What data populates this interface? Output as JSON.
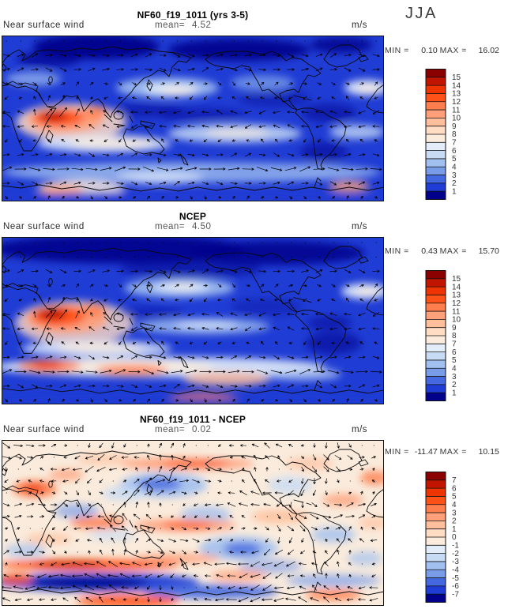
{
  "season": "JJA",
  "palette": [
    "#8b0000",
    "#c21500",
    "#ee3400",
    "#ff5218",
    "#ff7e4d",
    "#ffa07a",
    "#ffbf9c",
    "#ffdcc4",
    "#faebdc",
    "#e3edfa",
    "#c7dbf5",
    "#a2c0ef",
    "#799ce9",
    "#4468e0",
    "#1f3cd4",
    "#00008b"
  ],
  "panels": [
    {
      "title": "NF60_f19_1011 (yrs 3-5)",
      "field_label": "Near surface wind",
      "mean_label": "mean=",
      "mean_value": "4.52",
      "units": "m/s",
      "stats": {
        "min_label": "MIN =",
        "min_value": "0.10",
        "max_label": "MAX =",
        "max_value": "16.02"
      },
      "colorbar_labels": [
        "15",
        "14",
        "13",
        "12",
        "11",
        "10",
        "9",
        "8",
        "7",
        "6",
        "5",
        "4",
        "3",
        "2",
        "1"
      ]
    },
    {
      "title": "NCEP",
      "field_label": "Near surface wind",
      "mean_label": "mean=",
      "mean_value": "4.50",
      "units": "m/s",
      "stats": {
        "min_label": "MIN =",
        "min_value": "0.43",
        "max_label": "MAX =",
        "max_value": "15.70"
      },
      "colorbar_labels": [
        "15",
        "14",
        "13",
        "12",
        "11",
        "10",
        "9",
        "8",
        "7",
        "6",
        "5",
        "4",
        "3",
        "2",
        "1"
      ]
    },
    {
      "title": "NF60_f19_1011 - NCEP",
      "field_label": "Near surface wind",
      "mean_label": "mean=",
      "mean_value": "0.02",
      "units": "m/s",
      "stats": {
        "min_label": "MIN =",
        "min_value": "-11.47",
        "max_label": "MAX =",
        "max_value": "10.15"
      },
      "colorbar_labels": [
        "7",
        "6",
        "5",
        "4",
        "3",
        "2",
        "1",
        "0",
        "-1",
        "-2",
        "-3",
        "-4",
        "-5",
        "-6",
        "-7"
      ]
    }
  ],
  "chart_data": [
    {
      "type": "heatmap",
      "subtype": "global filled-contour wind speed map with vector arrows",
      "title": "NF60_f19_1011 (yrs 3-5)",
      "season": "JJA",
      "variable": "Near surface wind",
      "units": "m/s",
      "mean": 4.52,
      "min": 0.1,
      "max": 16.02,
      "contour_levels": [
        1,
        2,
        3,
        4,
        5,
        6,
        7,
        8,
        9,
        10,
        11,
        12,
        13,
        14,
        15
      ],
      "legend_position": "right",
      "projection": "global cylindrical, lon 0-360E, lat 90N-90S"
    },
    {
      "type": "heatmap",
      "subtype": "global filled-contour wind speed map with vector arrows",
      "title": "NCEP",
      "season": "JJA",
      "variable": "Near surface wind",
      "units": "m/s",
      "mean": 4.5,
      "min": 0.43,
      "max": 15.7,
      "contour_levels": [
        1,
        2,
        3,
        4,
        5,
        6,
        7,
        8,
        9,
        10,
        11,
        12,
        13,
        14,
        15
      ],
      "legend_position": "right",
      "projection": "global cylindrical, lon 0-360E, lat 90N-90S"
    },
    {
      "type": "heatmap",
      "subtype": "global filled-contour difference map (model minus reanalysis) with vector arrows",
      "title": "NF60_f19_1011 - NCEP",
      "season": "JJA",
      "variable": "Near surface wind",
      "units": "m/s",
      "mean": 0.02,
      "min": -11.47,
      "max": 10.15,
      "contour_levels": [
        -7,
        -6,
        -5,
        -4,
        -3,
        -2,
        -1,
        0,
        1,
        2,
        3,
        4,
        5,
        6,
        7
      ],
      "legend_position": "right",
      "projection": "global cylindrical, lon 0-360E, lat 90N-90S"
    }
  ]
}
